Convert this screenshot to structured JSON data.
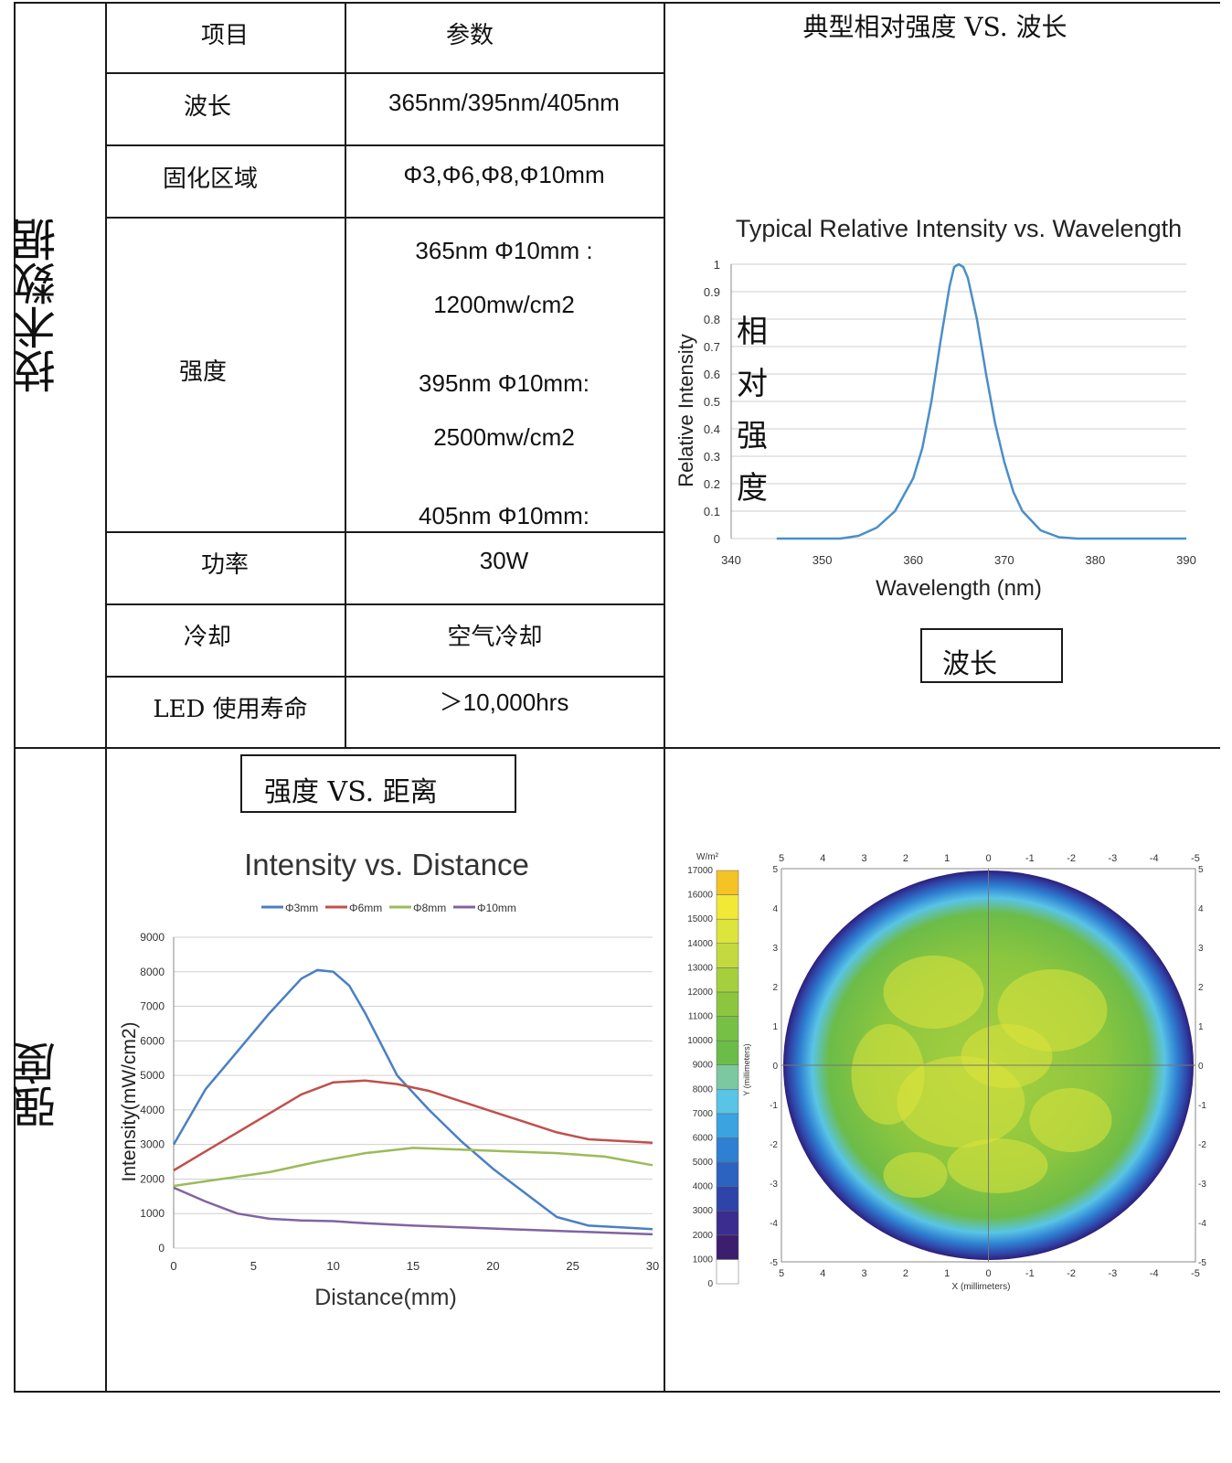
{
  "side": {
    "top": "技术数据",
    "bottom": "强度"
  },
  "table": {
    "headers": [
      "项目",
      "参数"
    ],
    "rows": [
      {
        "label": "波长",
        "value": [
          "365nm/395nm/405nm"
        ]
      },
      {
        "label": "固化区域",
        "value": [
          "Φ3,Φ6,Φ8,Φ10mm"
        ]
      },
      {
        "label": "强度",
        "value": [
          "365nm Φ10mm :",
          "1200mw/cm2",
          "395nm Φ10mm:",
          "2500mw/cm2",
          "405nm Φ10mm:"
        ]
      },
      {
        "label": "功率",
        "value": [
          "30W"
        ]
      },
      {
        "label": "冷却",
        "value": [
          "空气冷却"
        ]
      },
      {
        "label": "LED 使用寿命",
        "value": [
          "＞10,000hrs"
        ]
      }
    ]
  },
  "spectrum_panel": {
    "heading": "典型相对强度 VS. 波长",
    "vertical_label": [
      "相",
      "对",
      "强",
      "度"
    ],
    "box_label": "波长"
  },
  "distance_panel": {
    "box_label": "强度 VS. 距离"
  },
  "chart_data": [
    {
      "type": "line",
      "title": "Typical Relative Intensity vs. Wavelength",
      "xlabel": "Wavelength (nm)",
      "ylabel": "Relative Intensity",
      "xlim": [
        340,
        390
      ],
      "ylim": [
        0,
        1
      ],
      "xticks": [
        340,
        350,
        360,
        370,
        380,
        390
      ],
      "yticks": [
        0,
        0.1,
        0.2,
        0.3,
        0.4,
        0.5,
        0.6,
        0.7,
        0.8,
        0.9,
        1
      ],
      "grid": true,
      "color": "#4a8fc8",
      "series": [
        {
          "x": [
            345,
            352,
            354,
            356,
            358,
            360,
            361,
            362,
            363,
            364,
            364.5,
            365,
            365.5,
            366,
            367,
            368,
            369,
            370,
            371,
            372,
            374,
            376,
            378,
            390
          ],
          "y": [
            0,
            0,
            0.01,
            0.04,
            0.1,
            0.22,
            0.33,
            0.5,
            0.72,
            0.92,
            0.99,
            1.0,
            0.99,
            0.95,
            0.8,
            0.6,
            0.42,
            0.28,
            0.17,
            0.1,
            0.03,
            0.005,
            0,
            0
          ]
        }
      ]
    },
    {
      "type": "line",
      "title": "Intensity vs. Distance",
      "xlabel": "Distance(mm)",
      "ylabel": "Intensity(mW/cm2)",
      "xlim": [
        0,
        30
      ],
      "ylim": [
        0,
        9000
      ],
      "xticks": [
        0,
        5,
        10,
        15,
        20,
        25,
        30
      ],
      "yticks": [
        0,
        1000,
        2000,
        3000,
        4000,
        5000,
        6000,
        7000,
        8000,
        9000
      ],
      "grid": true,
      "legend": "top",
      "series": [
        {
          "name": "Φ3mm",
          "color": "#4a7fc4",
          "x": [
            0,
            2,
            4,
            6,
            8,
            9,
            10,
            11,
            12,
            13,
            14,
            15,
            16,
            18,
            20,
            22,
            24,
            26,
            28,
            30
          ],
          "y": [
            3000,
            4600,
            5700,
            6800,
            7800,
            8050,
            8000,
            7600,
            6800,
            5900,
            5000,
            4500,
            4000,
            3100,
            2300,
            1600,
            900,
            650,
            600,
            550
          ]
        },
        {
          "name": "Φ6mm",
          "color": "#c0504d",
          "x": [
            0,
            2,
            4,
            6,
            8,
            10,
            12,
            14,
            16,
            18,
            20,
            22,
            24,
            26,
            28,
            30
          ],
          "y": [
            2250,
            2800,
            3350,
            3900,
            4450,
            4800,
            4850,
            4750,
            4550,
            4250,
            3950,
            3650,
            3350,
            3150,
            3100,
            3050
          ]
        },
        {
          "name": "Φ8mm",
          "color": "#9bbb59",
          "x": [
            0,
            3,
            6,
            9,
            12,
            15,
            18,
            21,
            24,
            27,
            30
          ],
          "y": [
            1800,
            2000,
            2200,
            2500,
            2750,
            2900,
            2850,
            2800,
            2750,
            2650,
            2400
          ]
        },
        {
          "name": "Φ10mm",
          "color": "#8064a2",
          "x": [
            0,
            2,
            4,
            6,
            8,
            10,
            12,
            15,
            18,
            21,
            24,
            27,
            30
          ],
          "y": [
            1750,
            1350,
            1000,
            850,
            800,
            780,
            720,
            650,
            600,
            550,
            500,
            450,
            400
          ]
        }
      ]
    },
    {
      "type": "heatmap",
      "colorbar_unit": "W/m²",
      "colorbar_ticks": [
        0,
        1000,
        2000,
        3000,
        4000,
        5000,
        6000,
        7000,
        8000,
        9000,
        10000,
        11000,
        12000,
        13000,
        14000,
        15000,
        16000,
        17000
      ],
      "colorbar_colors": [
        "#ffffff",
        "#3b1f6e",
        "#3a2d8f",
        "#2f44a8",
        "#2c62c0",
        "#2f80d2",
        "#3aa3e0",
        "#59c4e6",
        "#7cc8a0",
        "#6cbc48",
        "#76c046",
        "#8cc63f",
        "#a6cf3e",
        "#c3da3f",
        "#dde43c",
        "#f2e836",
        "#f5c326"
      ],
      "xlabel": "X (millimeters)",
      "ylabel": "Y (millimeters)",
      "xticks": [
        5,
        4,
        3,
        2,
        1,
        0,
        -1,
        -2,
        -3,
        -4,
        -5
      ],
      "yticks": [
        5,
        4,
        3,
        2,
        1,
        0,
        -1,
        -2,
        -3,
        -4,
        -5
      ]
    }
  ]
}
